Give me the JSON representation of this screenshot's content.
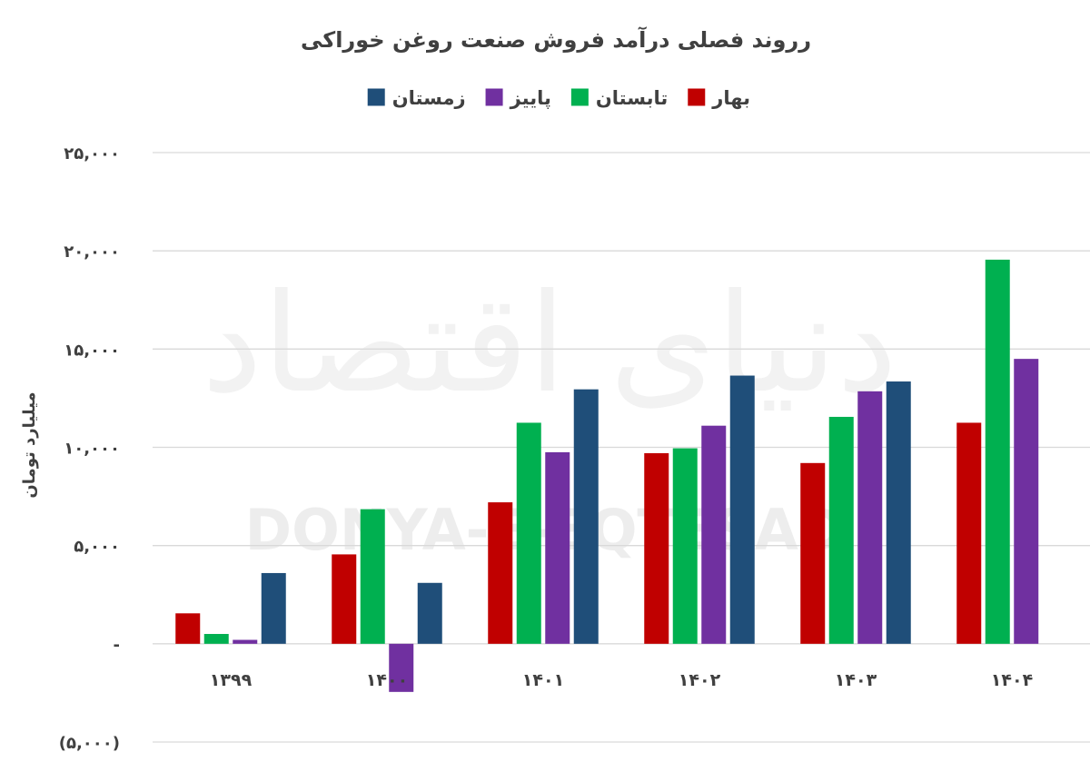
{
  "chart_data": {
    "type": "bar",
    "title": "رروند فصلی درآمد فروش صنعت روغن خوراکی",
    "ylabel": "میلیارد تومان",
    "xlabel": "",
    "categories": [
      "۱۳۹۹",
      "۱۴۰۰",
      "۱۴۰۱",
      "۱۴۰۲",
      "۱۴۰۳",
      "۱۴۰۴"
    ],
    "series": [
      {
        "name": "بهار",
        "color": "#c00000",
        "values": [
          1550,
          4550,
          7200,
          9700,
          9200,
          11250
        ]
      },
      {
        "name": "تابستان",
        "color": "#00b050",
        "values": [
          500,
          6850,
          11250,
          9950,
          11550,
          19550
        ]
      },
      {
        "name": "پاییز",
        "color": "#7030a0",
        "values": [
          200,
          -2450,
          9750,
          11100,
          12850,
          14500
        ]
      },
      {
        "name": "زمستان",
        "color": "#1f4e79",
        "values": [
          3600,
          3100,
          12950,
          13650,
          13350,
          null
        ]
      }
    ],
    "ylim": [
      -5000,
      25000
    ],
    "yticks": [
      -5000,
      0,
      5000,
      10000,
      15000,
      20000,
      25000
    ],
    "ytick_labels": [
      "(۵,۰۰۰)",
      "-",
      "۵,۰۰۰",
      "۱۰,۰۰۰",
      "۱۵,۰۰۰",
      "۲۰,۰۰۰",
      "۲۵,۰۰۰"
    ],
    "grid": true,
    "legend_position": "top"
  },
  "watermark": {
    "logo_text": "دنیای اقتصاد",
    "text": "DONYA-E-EQTESAD"
  }
}
